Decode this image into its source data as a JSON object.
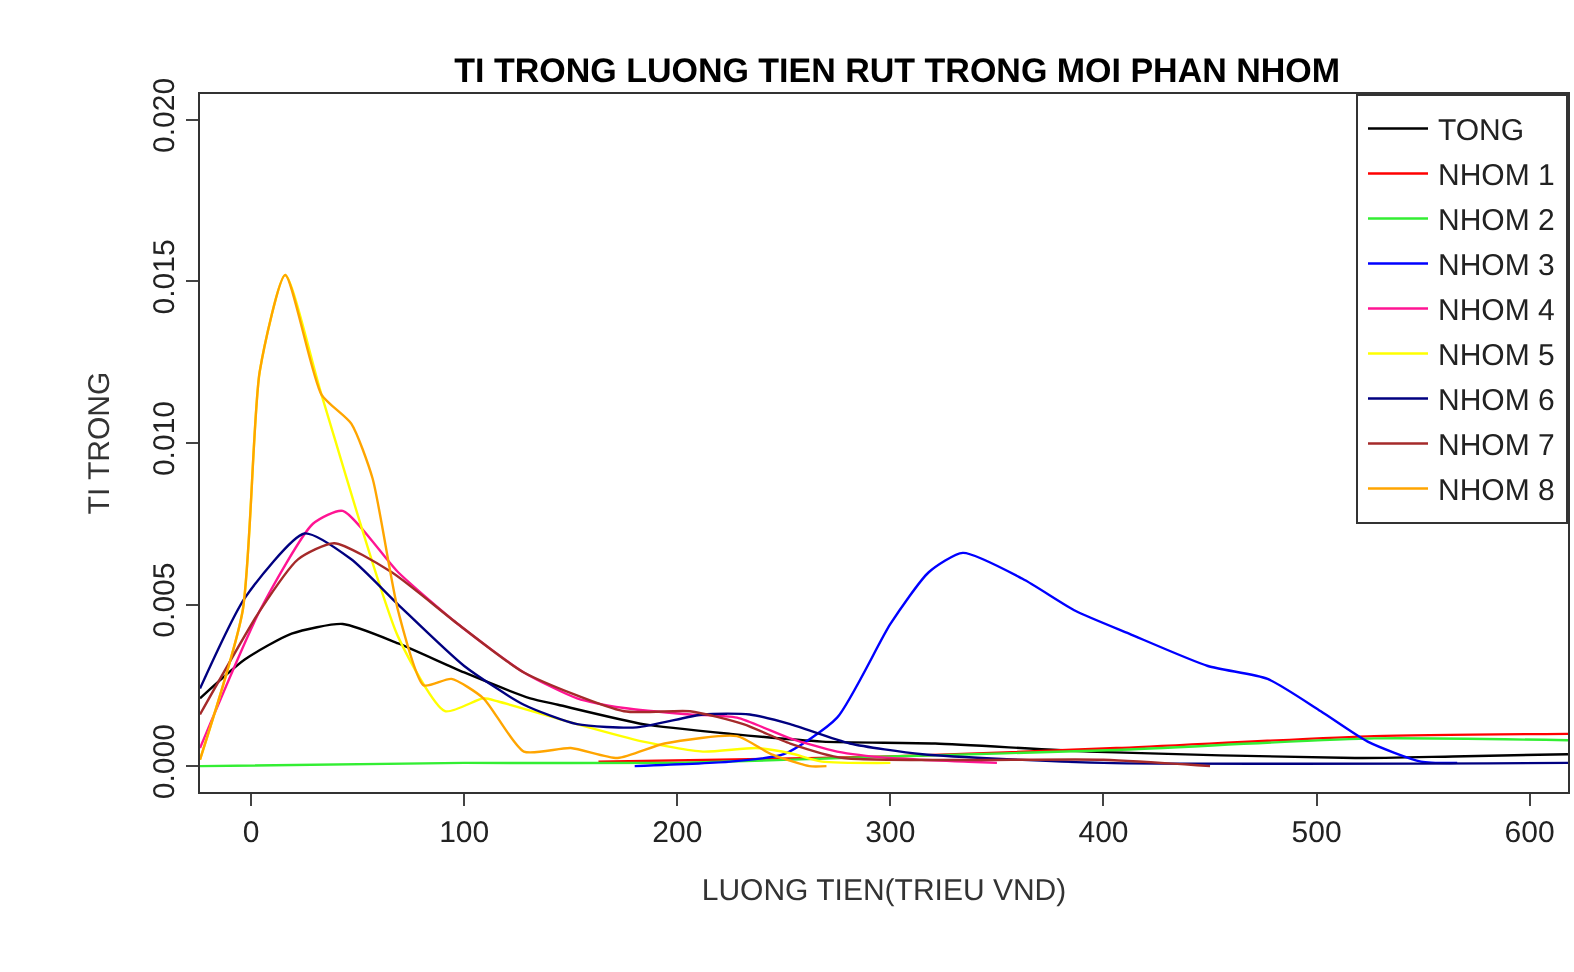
{
  "chart_data": {
    "type": "line",
    "title": "TI TRONG LUONG TIEN RUT TRONG MOI PHAN NHOM",
    "xlabel": "LUONG TIEN(TRIEU VND)",
    "ylabel": "TI TRONG",
    "xlim": [
      -24,
      618
    ],
    "ylim": [
      -0.0008,
      0.0208
    ],
    "xticks": [
      0,
      100,
      200,
      300,
      400,
      500,
      600
    ],
    "yticks": [
      {
        "value": 0,
        "label": "0.000"
      },
      {
        "value": 0.005,
        "label": "0.005"
      },
      {
        "value": 0.01,
        "label": "0.010"
      },
      {
        "value": 0.015,
        "label": "0.015"
      },
      {
        "value": 0.02,
        "label": "0.020"
      }
    ],
    "legend": "top right",
    "marker": "none",
    "line_style": "solid",
    "series": [
      {
        "name": "TONG",
        "color": "#000000",
        "x": [
          -24,
          -3,
          19,
          43,
          69,
          100,
          131,
          144,
          184,
          225,
          268,
          321,
          393,
          518,
          564,
          618
        ],
        "values": [
          0.0021,
          0.0033,
          0.0041,
          0.0044,
          0.0038,
          0.0029,
          0.0021,
          0.0019,
          0.0013,
          0.001,
          0.00076,
          0.0007,
          0.00045,
          0.00025,
          0.0003,
          0.00037
        ]
      },
      {
        "name": "NHOM 1",
        "color": "#ff0000",
        "x": [
          163,
          220,
          300,
          406,
          527,
          618
        ],
        "values": [
          0.00014,
          0.0002,
          0.0003,
          0.00056,
          0.00093,
          0.001
        ]
      },
      {
        "name": "NHOM 2",
        "color": "#33ee33",
        "x": [
          -24,
          100,
          200,
          300,
          406,
          527,
          618
        ],
        "values": [
          0.0,
          0.0001,
          0.0001,
          0.0003,
          0.0005,
          0.00086,
          0.0008
        ]
      },
      {
        "name": "NHOM 3",
        "color": "#0000ff",
        "x": [
          180,
          225,
          250,
          275,
          300,
          318,
          334,
          362,
          387,
          412,
          449,
          477,
          502,
          524,
          549,
          566
        ],
        "values": [
          0.0,
          0.00014,
          0.00037,
          0.0015,
          0.0044,
          0.006,
          0.0066,
          0.0058,
          0.0048,
          0.0041,
          0.0031,
          0.0027,
          0.0017,
          0.00076,
          0.00014,
          0.0001
        ]
      },
      {
        "name": "NHOM 4",
        "color": "#ff1493",
        "x": [
          -24,
          4,
          29,
          43,
          69,
          97,
          128,
          153,
          175,
          206,
          228,
          253,
          275,
          300,
          350
        ],
        "values": [
          0.00056,
          0.0048,
          0.0075,
          0.0079,
          0.006,
          0.0044,
          0.0029,
          0.0021,
          0.0018,
          0.0016,
          0.0015,
          0.00086,
          0.00045,
          0.00025,
          0.0001
        ]
      },
      {
        "name": "NHOM 5",
        "color": "#ffff00",
        "x": [
          -24,
          -4,
          4,
          16,
          33,
          69,
          91,
          109,
          116,
          153,
          184,
          212,
          237,
          253,
          268,
          300
        ],
        "values": [
          0.0002,
          0.0048,
          0.0122,
          0.0152,
          0.0115,
          0.004,
          0.0017,
          0.0021,
          0.002,
          0.0013,
          0.00076,
          0.00045,
          0.00056,
          0.0004,
          0.00014,
          0.0001
        ]
      },
      {
        "name": "NHOM 6",
        "color": "#000080",
        "x": [
          -24,
          -3,
          25,
          47,
          69,
          100,
          128,
          153,
          181,
          212,
          234,
          253,
          281,
          315,
          400,
          618
        ],
        "values": [
          0.0024,
          0.0052,
          0.0072,
          0.0064,
          0.005,
          0.0031,
          0.0019,
          0.0013,
          0.0012,
          0.0016,
          0.0016,
          0.0013,
          0.0007,
          0.00037,
          0.0001,
          0.0001
        ]
      },
      {
        "name": "NHOM 7",
        "color": "#a52a2a",
        "x": [
          -24,
          4,
          22,
          39,
          66,
          97,
          128,
          175,
          206,
          231,
          253,
          278,
          400,
          450
        ],
        "values": [
          0.0016,
          0.0048,
          0.0064,
          0.0069,
          0.006,
          0.0044,
          0.0029,
          0.0017,
          0.0017,
          0.0013,
          0.0007,
          0.00025,
          0.0002,
          0.0
        ]
      },
      {
        "name": "NHOM 8",
        "color": "#ffa500",
        "x": [
          -24,
          -4,
          4,
          16,
          33,
          47,
          57,
          69,
          81,
          94,
          109,
          128,
          150,
          172,
          194,
          228,
          244,
          262,
          270
        ],
        "values": [
          0.0002,
          0.0048,
          0.0122,
          0.0152,
          0.0115,
          0.0106,
          0.0089,
          0.0048,
          0.0025,
          0.0027,
          0.0021,
          0.00045,
          0.00056,
          0.00025,
          0.0007,
          0.00093,
          0.00037,
          0.0,
          0.0
        ]
      }
    ]
  }
}
